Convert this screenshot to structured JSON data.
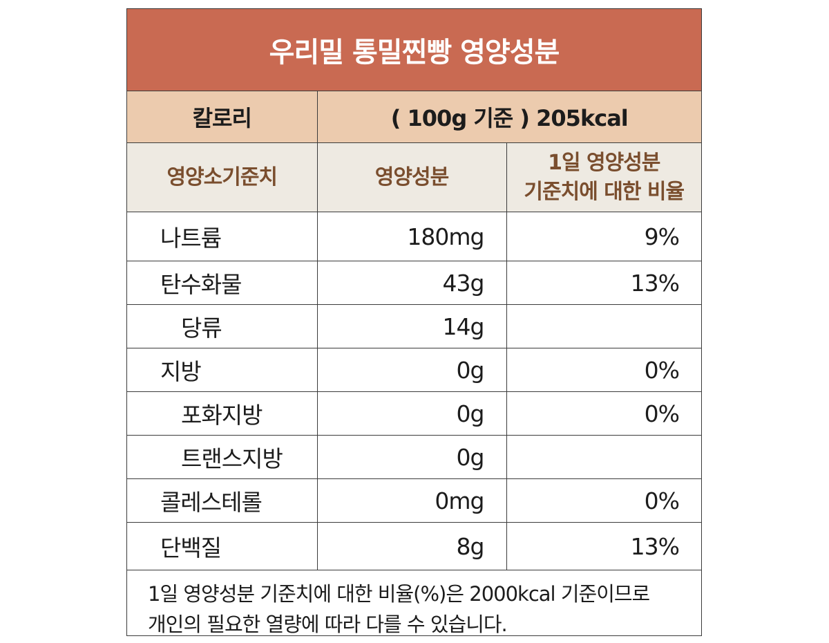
{
  "title": "우리밀 통밀찐빵 영양성분",
  "calorie": {
    "label": "칼로리",
    "value": "( 100g 기준 ) 205kcal"
  },
  "headers": {
    "col1": "영양소기준치",
    "col2": "영양성분",
    "col3_line1": "1일 영양성분",
    "col3_line2": "기준치에 대한 비율"
  },
  "rows": [
    {
      "name": "나트륨",
      "amount": "180mg",
      "pct": "9%"
    },
    {
      "name": "탄수화물",
      "amount": "43g",
      "pct": "13%"
    },
    {
      "name": "당류",
      "amount": "14g",
      "pct": ""
    },
    {
      "name": "지방",
      "amount": "0g",
      "pct": "0%"
    },
    {
      "name": "포화지방",
      "amount": "0g",
      "pct": "0%"
    },
    {
      "name": "트랜스지방",
      "amount": "0g",
      "pct": ""
    },
    {
      "name": "콜레스테롤",
      "amount": "0mg",
      "pct": "0%"
    },
    {
      "name": "단백질",
      "amount": "8g",
      "pct": "13%"
    }
  ],
  "note": {
    "line1": "1일 영양성분 기준치에 대한 비율(%)은 2000kcal 기준이므로",
    "line2": "개인의 필요한 열량에 따라 다를 수 있습니다."
  },
  "colors": {
    "title_bg": "#c96a52",
    "calorie_bg": "#eccbae",
    "header_bg": "#eeeae2",
    "header_text": "#7a4e2e"
  }
}
